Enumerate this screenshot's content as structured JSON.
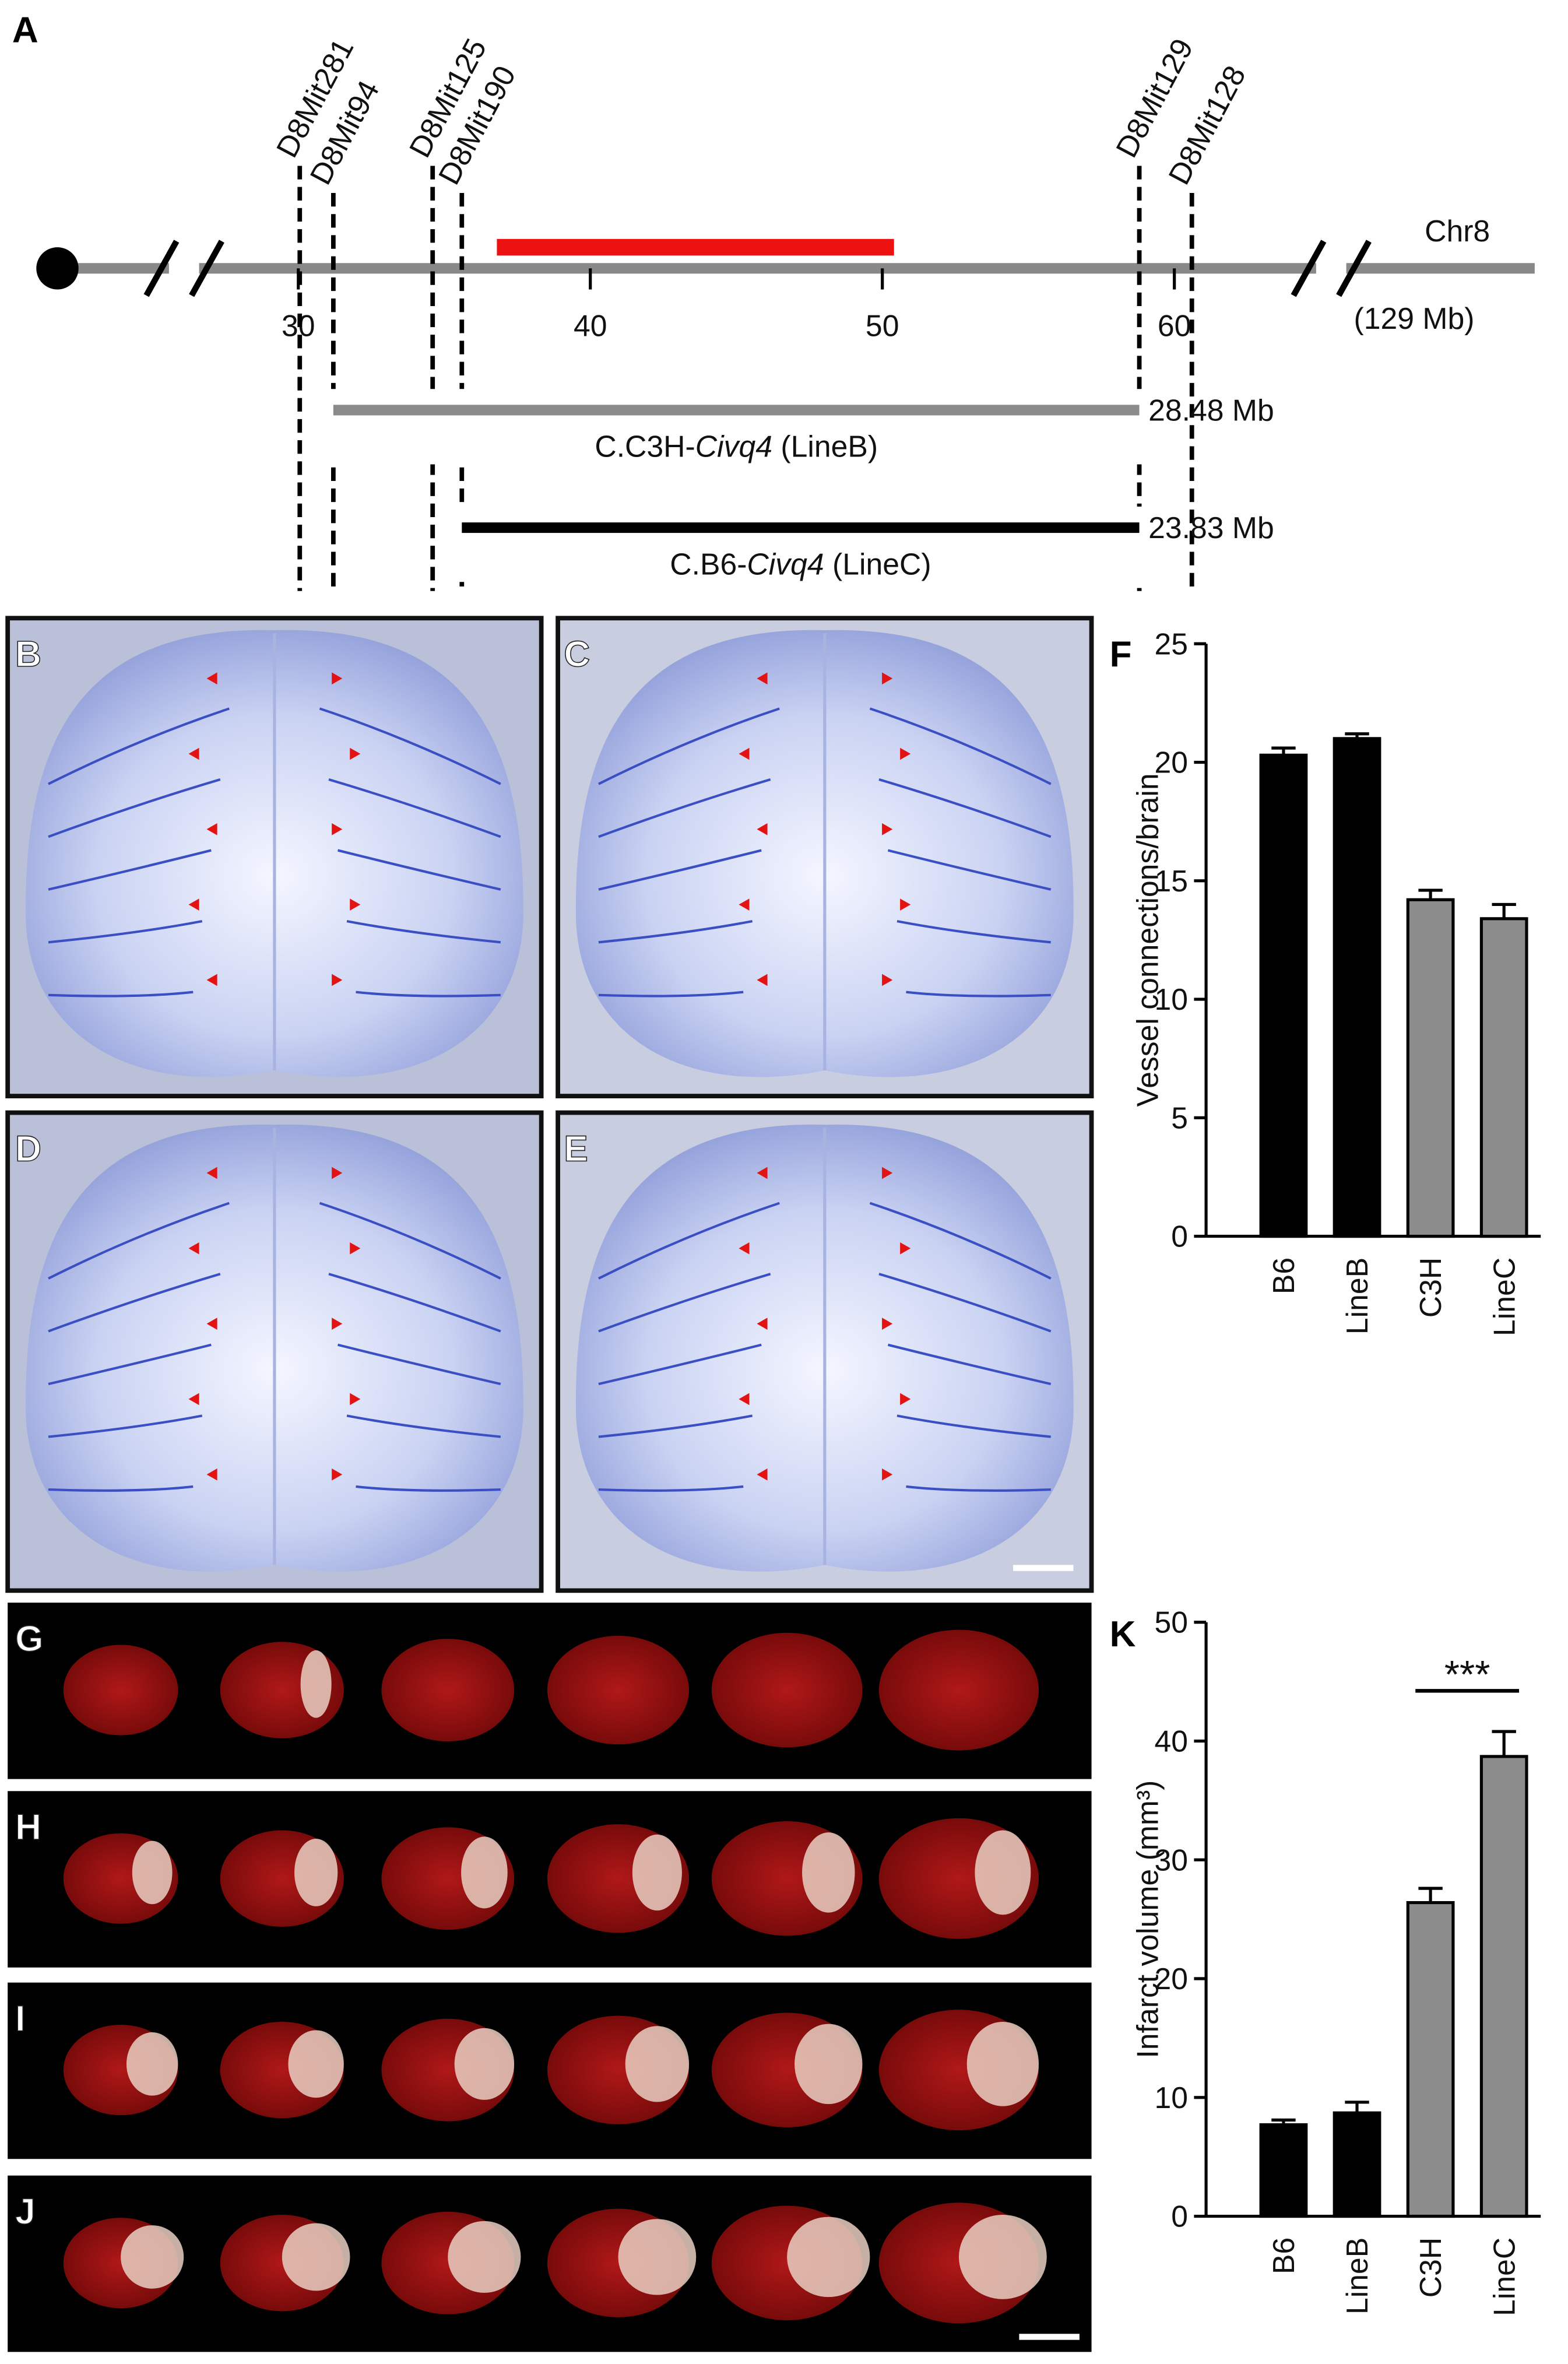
{
  "panel_labels": [
    "A",
    "B",
    "C",
    "D",
    "E",
    "F",
    "G",
    "H",
    "I",
    "J",
    "K"
  ],
  "genetic_map": {
    "chromosome": "Chr8",
    "length_label": "(129 Mb)",
    "xlim": [
      26.5,
      64.7
    ],
    "xticks": [
      30,
      40,
      50,
      60
    ],
    "markers": [
      {
        "name": "D8Mit281",
        "position": 30.05
      },
      {
        "name": "D8Mit94",
        "position": 31.2
      },
      {
        "name": "D8Mit125",
        "position": 34.6
      },
      {
        "name": "D8Mit190",
        "position": 35.6
      },
      {
        "name": "D8Mit129",
        "position": 58.8
      },
      {
        "name": "D8Mit128",
        "position": 60.6
      }
    ],
    "region": {
      "start": 36.8,
      "end": 50.4,
      "color": "#ee1111"
    },
    "lines": [
      {
        "name_prefix": "C.C3H-",
        "name_italic": "Civq4",
        "name_suffix": " (LineB)",
        "start": 31.2,
        "end": 58.8,
        "size_label": "28.48 Mb",
        "color": "#8a8a8a"
      },
      {
        "name_prefix": "C.B6-",
        "name_italic": "Civq4",
        "name_suffix": " (LineC)",
        "start": 35.6,
        "end": 58.8,
        "size_label": "23.83 Mb",
        "color": "#000000"
      }
    ]
  },
  "chart_data": [
    {
      "type": "bar",
      "y_label": "Vessel connections/brain",
      "categories": [
        "B6",
        "LineB",
        "C3H",
        "LineC"
      ],
      "values": [
        20.3,
        21.0,
        14.2,
        13.4
      ],
      "errors": [
        0.3,
        0.2,
        0.4,
        0.6
      ],
      "colors": [
        "#000000",
        "#000000",
        "#8c8c8c",
        "#8c8c8c"
      ],
      "ylim": [
        0,
        25
      ],
      "yticks": [
        0,
        5,
        10,
        15,
        20,
        25
      ]
    },
    {
      "type": "bar",
      "y_label": "Infarct volume (mm³)",
      "categories": [
        "B6",
        "LineB",
        "C3H",
        "LineC"
      ],
      "values": [
        7.7,
        8.7,
        26.4,
        38.7
      ],
      "errors": [
        0.4,
        0.9,
        1.2,
        2.1
      ],
      "colors": [
        "#000000",
        "#000000",
        "#8c8c8c",
        "#8c8c8c"
      ],
      "ylim": [
        0,
        50
      ],
      "yticks": [
        0,
        10,
        20,
        30,
        40,
        50
      ],
      "significance": {
        "label": "***",
        "between": [
          "C3H",
          "LineC"
        ]
      }
    }
  ]
}
